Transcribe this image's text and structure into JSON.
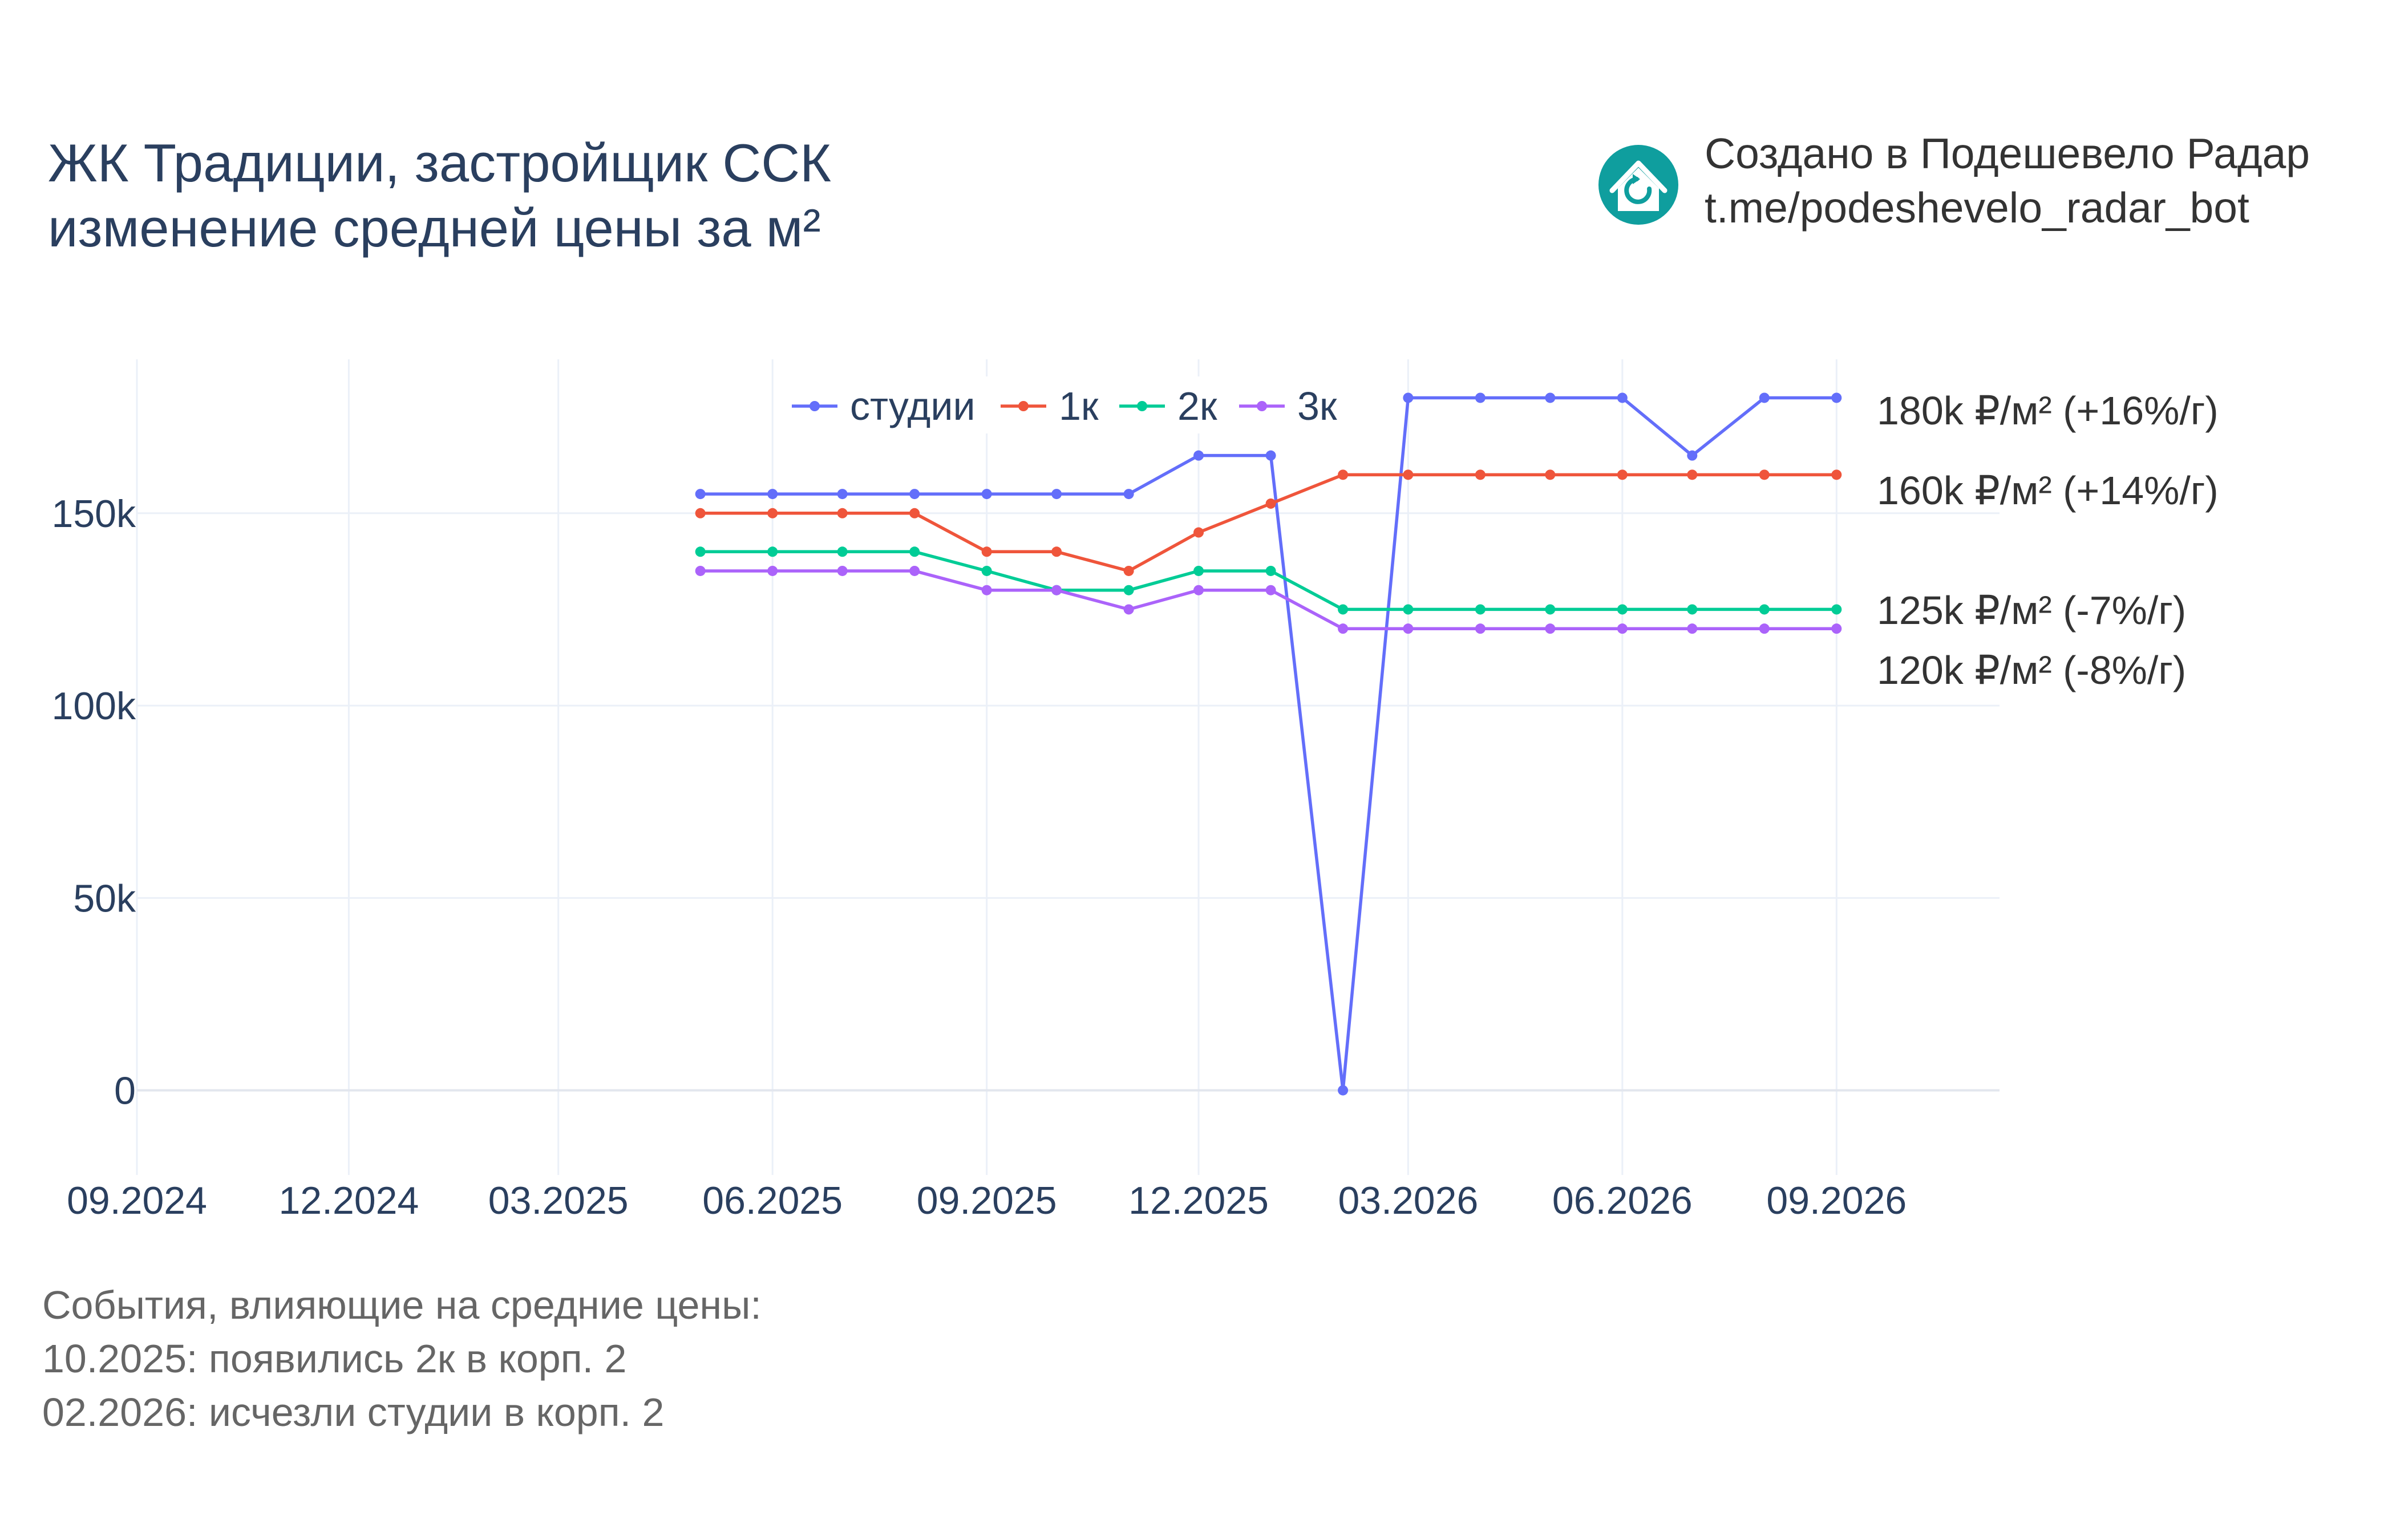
{
  "title": {
    "line1": "ЖК Традиции, застройщик ССК",
    "line2": "изменение средней цены за м²"
  },
  "branding": {
    "line1": "Создано в Подешевело Радар",
    "line2": "t.me/podeshevelo_radar_bot",
    "logo_icon": "house-refresh-icon",
    "logo_color": "#0f9e9e"
  },
  "notes": {
    "heading": "События, влияющие на средние цены:",
    "items": [
      "10.2025: появились 2к в корп. 2",
      "02.2026: исчезли студии в корп. 2"
    ]
  },
  "chart_data": {
    "type": "line",
    "x_format": "MM.YYYY",
    "xlim": [
      "2024-09-01",
      "2026-11-10"
    ],
    "ylim": [
      -22000,
      190000
    ],
    "x_ticks": [
      "2024-09-01",
      "2024-12-01",
      "2025-03-01",
      "2025-06-01",
      "2025-09-01",
      "2025-12-01",
      "2026-03-01",
      "2026-06-01",
      "2026-09-01"
    ],
    "x_tick_labels": [
      "09.2024",
      "12.2024",
      "03.2025",
      "06.2025",
      "09.2025",
      "12.2025",
      "03.2026",
      "06.2026",
      "09.2026"
    ],
    "y_ticks": [
      0,
      50000,
      100000,
      150000
    ],
    "y_tick_labels": [
      "0",
      "50k",
      "100k",
      "150k"
    ],
    "grid": true,
    "legend": "top-center, horizontal",
    "x": [
      "2025-05-01",
      "2025-06-01",
      "2025-07-01",
      "2025-08-01",
      "2025-09-01",
      "2025-10-01",
      "2025-11-01",
      "2025-12-01",
      "2026-01-01",
      "2026-02-01",
      "2026-03-01",
      "2026-04-01",
      "2026-05-01",
      "2026-06-01",
      "2026-07-01",
      "2026-08-01",
      "2026-09-01"
    ],
    "series": [
      {
        "name": "студии",
        "color": "#636efa",
        "values": [
          155000,
          155000,
          155000,
          155000,
          155000,
          155000,
          155000,
          165000,
          165000,
          0,
          180000,
          180000,
          180000,
          180000,
          165000,
          180000,
          180000
        ],
        "end_label": "180k ₽/м² (+16%/г)"
      },
      {
        "name": "1к",
        "color": "#ef553b",
        "values": [
          150000,
          150000,
          150000,
          150000,
          140000,
          140000,
          135000,
          145000,
          152500,
          160000,
          160000,
          160000,
          160000,
          160000,
          160000,
          160000,
          160000
        ],
        "end_label": "160k ₽/м² (+14%/г)"
      },
      {
        "name": "2к",
        "color": "#00cc96",
        "values": [
          140000,
          140000,
          140000,
          140000,
          135000,
          130000,
          130000,
          135000,
          135000,
          125000,
          125000,
          125000,
          125000,
          125000,
          125000,
          125000,
          125000
        ],
        "end_label": "125k ₽/м² (-7%/г)"
      },
      {
        "name": "3к",
        "color": "#ab63fa",
        "values": [
          135000,
          135000,
          135000,
          135000,
          130000,
          130000,
          125000,
          130000,
          130000,
          120000,
          120000,
          120000,
          120000,
          120000,
          120000,
          120000,
          120000
        ],
        "end_label": "120k ₽/м² (-8%/г)"
      }
    ]
  }
}
